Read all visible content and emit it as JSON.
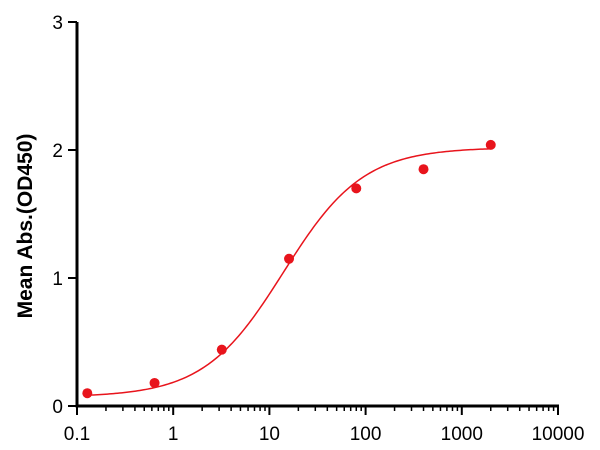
{
  "chart_data": {
    "type": "scatter",
    "title": "",
    "xlabel": "",
    "ylabel": "Mean Abs.(OD450)",
    "x_scale": "log",
    "xlim": [
      0.1,
      10000
    ],
    "ylim": [
      0,
      3
    ],
    "x_ticks": [
      0.1,
      1,
      10,
      100,
      1000,
      10000
    ],
    "x_tick_labels": [
      "0.1",
      "1",
      "10",
      "100",
      "1000",
      "10000"
    ],
    "y_ticks": [
      0,
      1,
      2,
      3
    ],
    "y_tick_labels": [
      "0",
      "1",
      "2",
      "3"
    ],
    "grid": false,
    "legend": "none",
    "series": [
      {
        "points": [
          {
            "x": 0.128,
            "y": 0.1
          },
          {
            "x": 0.64,
            "y": 0.18
          },
          {
            "x": 3.2,
            "y": 0.44
          },
          {
            "x": 16,
            "y": 1.15
          },
          {
            "x": 80,
            "y": 1.7
          },
          {
            "x": 400,
            "y": 1.85
          },
          {
            "x": 2000,
            "y": 2.04
          }
        ],
        "fit_curve": {
          "model": "4PL",
          "bottom": 0.07,
          "top": 2.02,
          "ec50": 14,
          "hill": 1.05,
          "x_range": [
            0.128,
            2000
          ]
        }
      }
    ],
    "colors": {
      "series": "#e8141c",
      "axis": "#000000"
    }
  }
}
